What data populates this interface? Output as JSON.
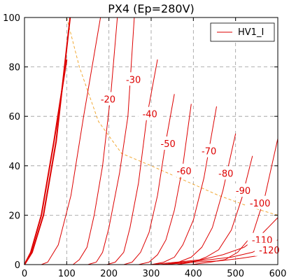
{
  "chart_data": {
    "type": "line",
    "title": "PX4 (Ep=280V)",
    "xlim": [
      0,
      600
    ],
    "ylim": [
      0,
      100
    ],
    "xticks": [
      0,
      100,
      200,
      300,
      400,
      500,
      600
    ],
    "yticks": [
      0,
      20,
      40,
      60,
      80,
      100
    ],
    "grid": true,
    "legend": {
      "position": "top-right",
      "entries": [
        "HV1_I"
      ]
    },
    "series": [
      {
        "name": "HV1_I",
        "label": "",
        "bold": true,
        "x": [
          0,
          15,
          40,
          70,
          100
        ],
        "y": [
          0,
          5,
          20,
          50,
          83
        ]
      },
      {
        "name": "HV1_I",
        "label": "",
        "bold": true,
        "x": [
          0,
          18,
          45,
          75,
          108
        ],
        "y": [
          0,
          5,
          20,
          50,
          100
        ]
      },
      {
        "name": "HV1_I",
        "label": "",
        "x": [
          40,
          55,
          80,
          110,
          140,
          180
        ],
        "y": [
          0,
          1,
          8,
          28,
          60,
          100
        ]
      },
      {
        "name": "HV1_I",
        "label": "-20",
        "x": [
          115,
          130,
          148,
          165,
          185,
          205,
          220
        ],
        "y": [
          0,
          2,
          7,
          20,
          40,
          70,
          100
        ]
      },
      {
        "name": "HV1_I",
        "label": "-30",
        "x": [
          150,
          170,
          185,
          200,
          225,
          245,
          260
        ],
        "y": [
          0,
          1,
          5,
          15,
          37,
          60,
          100
        ]
      },
      {
        "name": "HV1_I",
        "label": "-40",
        "x": [
          195,
          215,
          235,
          250,
          270,
          290,
          315
        ],
        "y": [
          0,
          1,
          5,
          15,
          33,
          60,
          83
        ]
      },
      {
        "name": "HV1_I",
        "label": "-50",
        "x": [
          235,
          255,
          275,
          295,
          315,
          335,
          355
        ],
        "y": [
          0,
          1,
          5,
          13,
          28,
          50,
          69
        ]
      },
      {
        "name": "HV1_I",
        "label": "-60",
        "x": [
          270,
          295,
          315,
          335,
          355,
          375,
          395
        ],
        "y": [
          0,
          1,
          4,
          10,
          22,
          40,
          65
        ]
      },
      {
        "name": "HV1_I",
        "label": "-70",
        "x": [
          300,
          330,
          355,
          375,
          400,
          425,
          455
        ],
        "y": [
          0,
          1,
          3,
          8,
          18,
          35,
          64
        ]
      },
      {
        "name": "HV1_I",
        "label": "-80",
        "x": [
          330,
          365,
          395,
          420,
          445,
          470,
          500
        ],
        "y": [
          0,
          1,
          3,
          7,
          15,
          30,
          53
        ]
      },
      {
        "name": "HV1_I",
        "label": "-90",
        "x": [
          360,
          400,
          430,
          460,
          490,
          515,
          540
        ],
        "y": [
          0,
          1,
          3,
          6,
          14,
          27,
          44
        ]
      },
      {
        "name": "HV1_I",
        "label": "-100",
        "x": [
          395,
          440,
          475,
          505,
          540,
          570,
          600
        ],
        "y": [
          0,
          1,
          2,
          5,
          12,
          28,
          51
        ]
      },
      {
        "name": "HV1_I",
        "label": "",
        "x": [
          300,
          360,
          420,
          470,
          520,
          560,
          600
        ],
        "y": [
          0,
          1,
          2,
          4,
          7,
          12,
          19
        ]
      },
      {
        "name": "HV1_I",
        "label": "-110",
        "x": [
          320,
          380,
          440,
          490,
          540,
          575,
          600
        ],
        "y": [
          0,
          1,
          2,
          3,
          5,
          8,
          10
        ]
      },
      {
        "name": "HV1_I",
        "label": "-120",
        "x": [
          330,
          400,
          460,
          510,
          550,
          580,
          600
        ],
        "y": [
          0,
          1,
          1.5,
          2.5,
          3.5,
          5,
          6
        ]
      }
    ],
    "curve_labels": [
      {
        "text": "-20",
        "x": 198,
        "y": 67
      },
      {
        "text": "-30",
        "x": 258,
        "y": 75
      },
      {
        "text": "-40",
        "x": 297,
        "y": 61
      },
      {
        "text": "-50",
        "x": 340,
        "y": 49
      },
      {
        "text": "-60",
        "x": 378,
        "y": 38
      },
      {
        "text": "-70",
        "x": 437,
        "y": 46
      },
      {
        "text": "-80",
        "x": 477,
        "y": 37
      },
      {
        "text": "-90",
        "x": 518,
        "y": 30
      },
      {
        "text": "-100",
        "x": 558,
        "y": 25
      },
      {
        "text": "-110",
        "x": 563,
        "y": 10
      },
      {
        "text": "-120",
        "x": 580,
        "y": 6
      }
    ],
    "load_line": {
      "x": [
        100,
        130,
        175,
        230,
        300,
        380,
        460,
        540,
        600
      ],
      "y": [
        100,
        80,
        58,
        45,
        40,
        34,
        28,
        23,
        20
      ]
    }
  }
}
